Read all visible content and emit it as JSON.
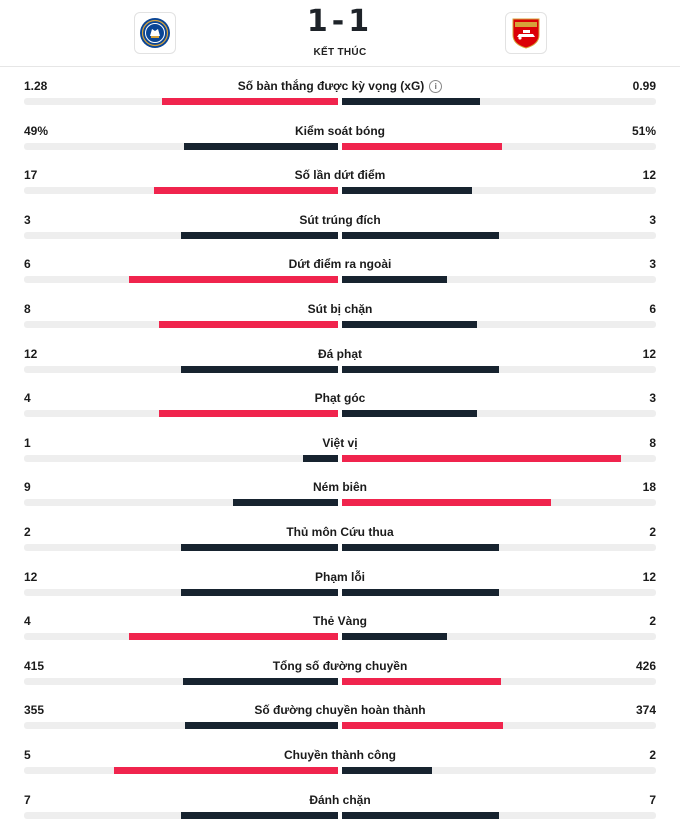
{
  "match": {
    "score": "1-1",
    "status": "KẾT THÚC",
    "home_crest": "chelsea-crest-icon",
    "away_crest": "arsenal-crest-icon"
  },
  "colors": {
    "winner": "#f0244d",
    "other": "#17232f",
    "track": "#eeeeee"
  },
  "stats": [
    {
      "label": "Số bàn thắng được kỳ vọng (xG)",
      "home": "1.28",
      "away": "0.99",
      "home_frac": 0.56,
      "away_frac": 0.44,
      "info": true
    },
    {
      "label": "Kiểm soát bóng",
      "home": "49%",
      "away": "51%",
      "home_frac": 0.49,
      "away_frac": 0.51
    },
    {
      "label": "Số lần dứt điểm",
      "home": "17",
      "away": "12",
      "home_frac": 0.586,
      "away_frac": 0.414
    },
    {
      "label": "Sút trúng đích",
      "home": "3",
      "away": "3",
      "home_frac": 0.5,
      "away_frac": 0.5
    },
    {
      "label": "Dứt điểm ra ngoài",
      "home": "6",
      "away": "3",
      "home_frac": 0.667,
      "away_frac": 0.333
    },
    {
      "label": "Sút bị chặn",
      "home": "8",
      "away": "6",
      "home_frac": 0.571,
      "away_frac": 0.429
    },
    {
      "label": "Đá phạt",
      "home": "12",
      "away": "12",
      "home_frac": 0.5,
      "away_frac": 0.5
    },
    {
      "label": "Phạt góc",
      "home": "4",
      "away": "3",
      "home_frac": 0.571,
      "away_frac": 0.429
    },
    {
      "label": "Việt vị",
      "home": "1",
      "away": "8",
      "home_frac": 0.111,
      "away_frac": 0.889
    },
    {
      "label": "Ném biên",
      "home": "9",
      "away": "18",
      "home_frac": 0.333,
      "away_frac": 0.667
    },
    {
      "label": "Thủ môn Cứu thua",
      "home": "2",
      "away": "2",
      "home_frac": 0.5,
      "away_frac": 0.5
    },
    {
      "label": "Phạm lỗi",
      "home": "12",
      "away": "12",
      "home_frac": 0.5,
      "away_frac": 0.5
    },
    {
      "label": "Thẻ Vàng",
      "home": "4",
      "away": "2",
      "home_frac": 0.667,
      "away_frac": 0.333
    },
    {
      "label": "Tổng số đường chuyền",
      "home": "415",
      "away": "426",
      "home_frac": 0.493,
      "away_frac": 0.507
    },
    {
      "label": "Số đường chuyền hoàn thành",
      "home": "355",
      "away": "374",
      "home_frac": 0.487,
      "away_frac": 0.513
    },
    {
      "label": "Chuyền thành công",
      "home": "5",
      "away": "2",
      "home_frac": 0.714,
      "away_frac": 0.286
    },
    {
      "label": "Đánh chặn",
      "home": "7",
      "away": "7",
      "home_frac": 0.5,
      "away_frac": 0.5
    }
  ]
}
